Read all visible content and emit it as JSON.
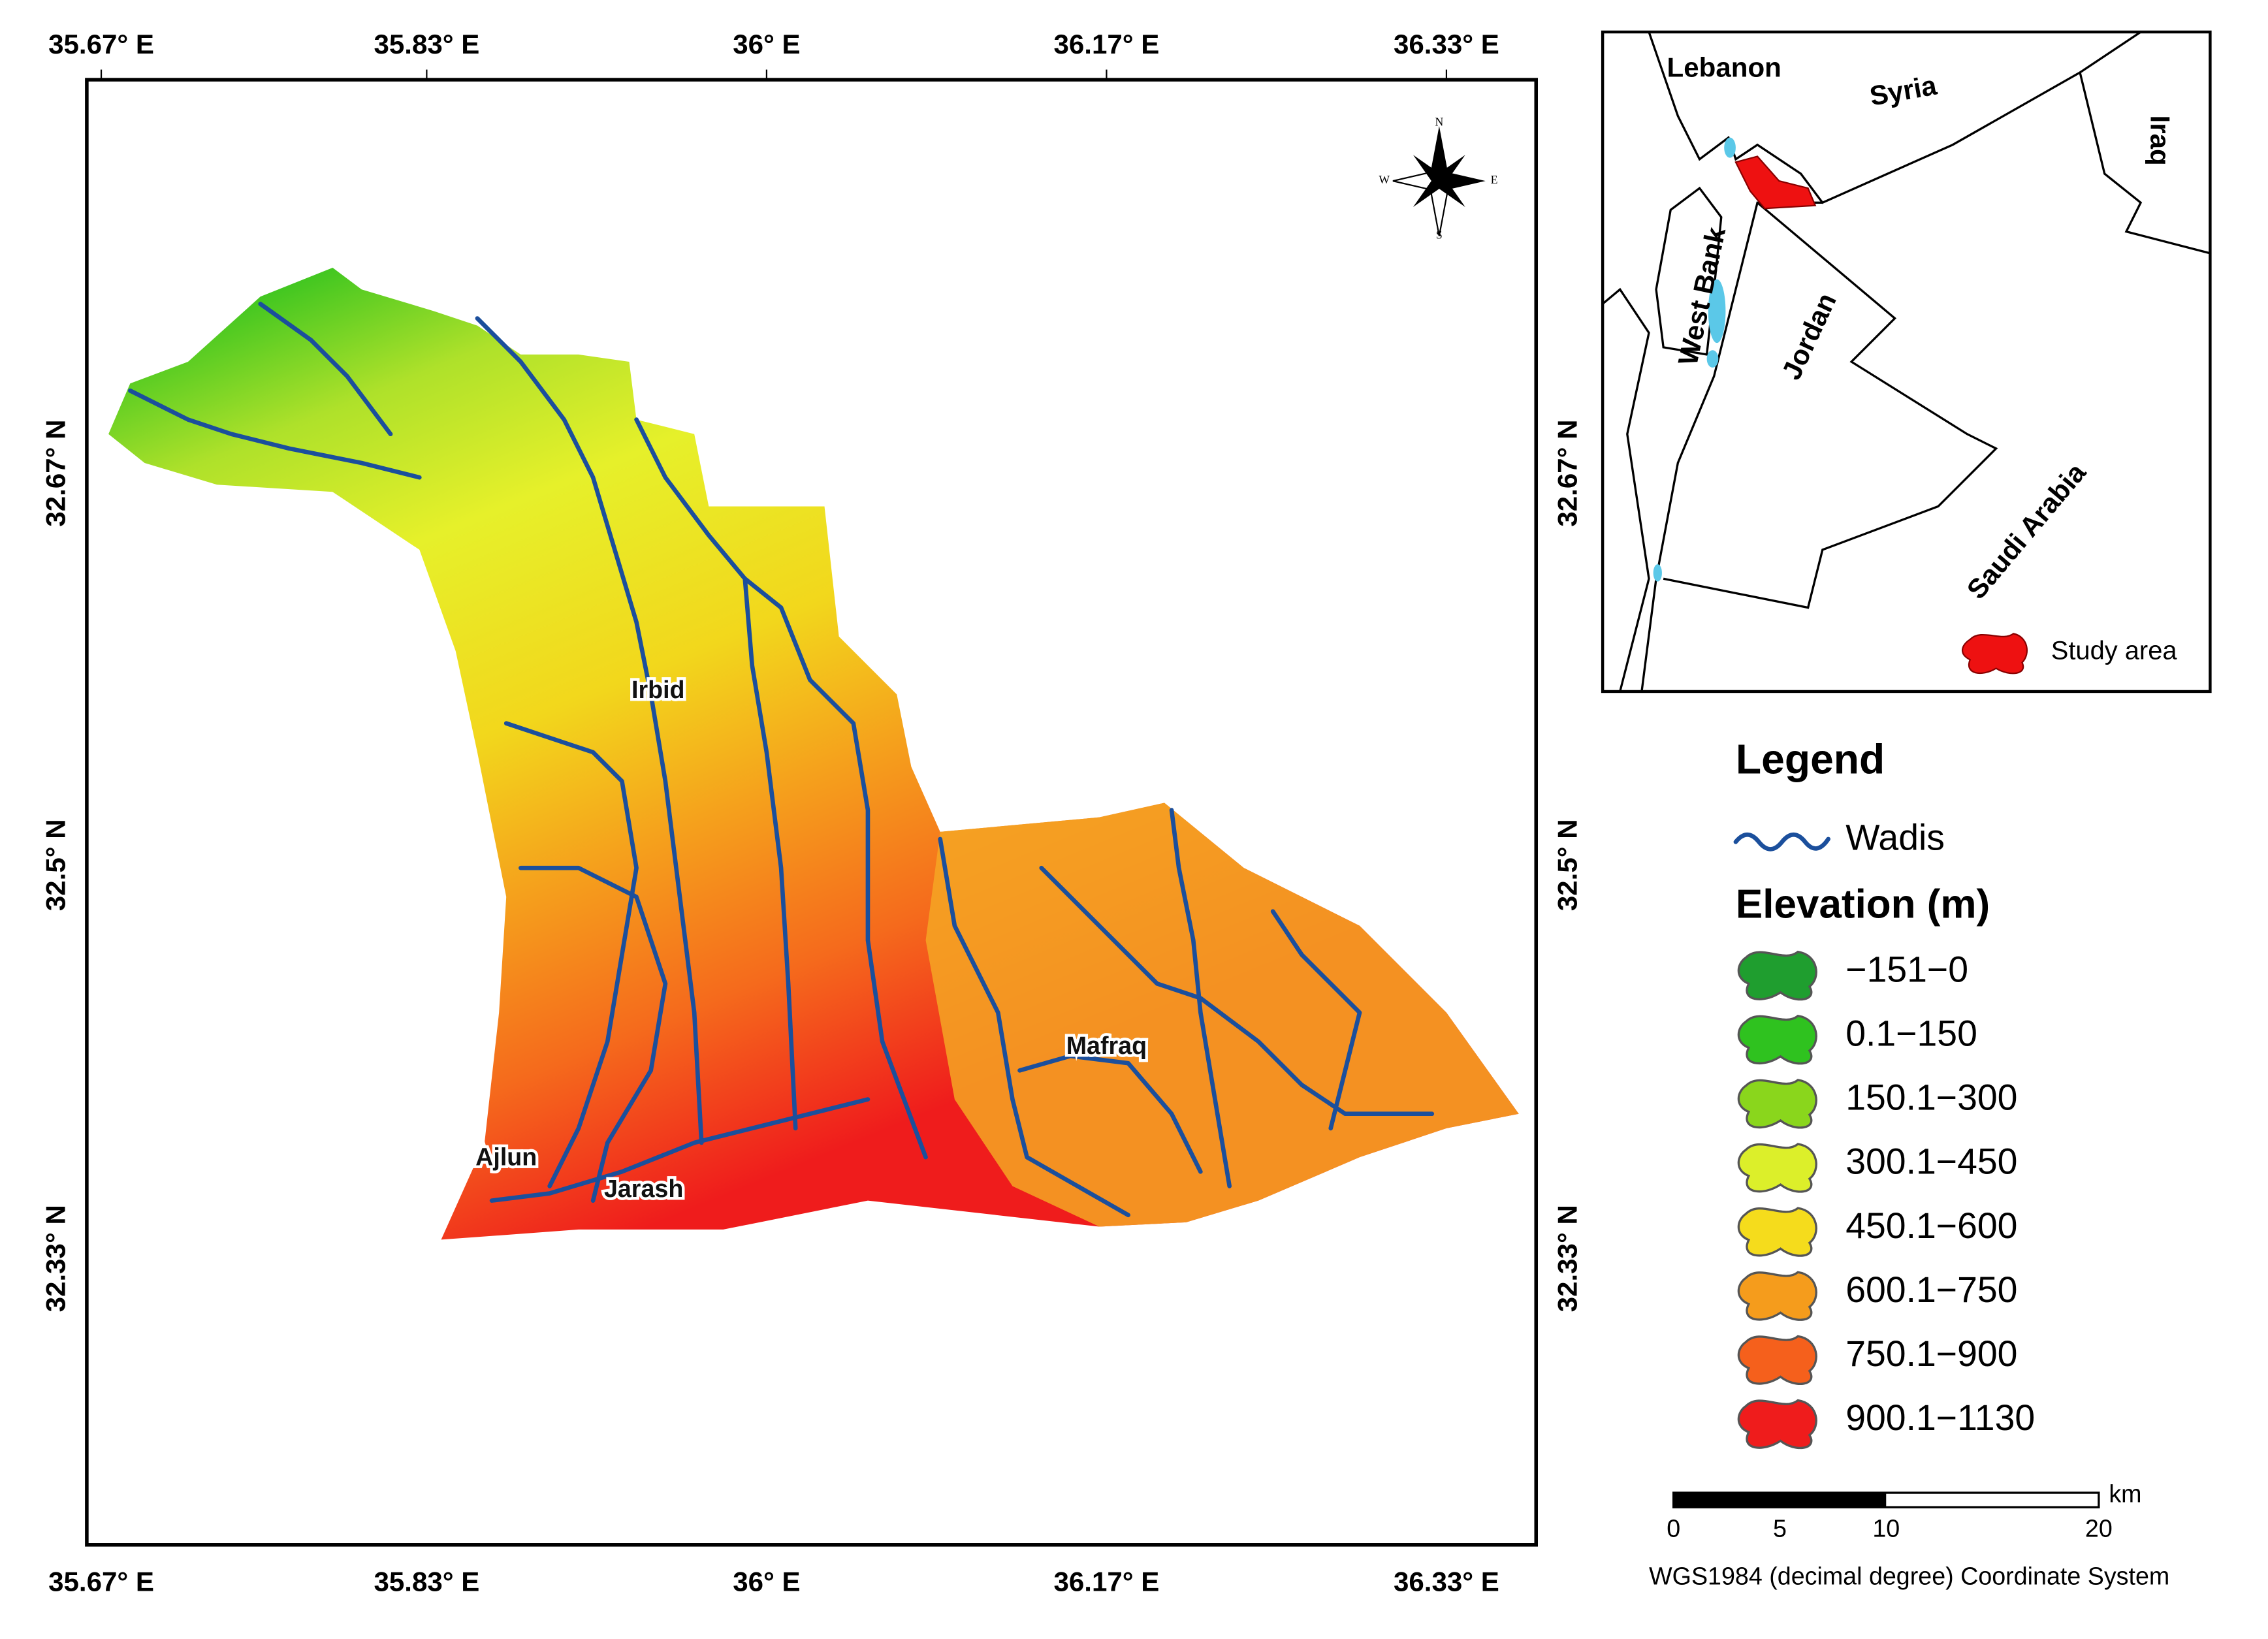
{
  "map": {
    "x_labels": [
      "35.67° E",
      "35.83° E",
      "36° E",
      "36.17° E",
      "36.33° E"
    ],
    "y_labels": [
      "32.67° N",
      "32.5° N",
      "32.33° N"
    ],
    "places": [
      "Irbid",
      "Mafraq",
      "Ajlun",
      "Jarash"
    ],
    "compass": [
      "N",
      "E",
      "S",
      "W"
    ]
  },
  "inset": {
    "countries": [
      "Lebanon",
      "Syria",
      "Iraq",
      "West Bank",
      "Jordan",
      "Saudi Arabia"
    ],
    "legend": "Study area"
  },
  "legend": {
    "title": "Legend",
    "wadis": "Wadis",
    "elevation_title": "Elevation (m)",
    "classes": [
      {
        "label": "−151−0",
        "color": "#1f9e2f"
      },
      {
        "label": "0.1−150",
        "color": "#2fc21f"
      },
      {
        "label": "150.1−300",
        "color": "#8ad61c"
      },
      {
        "label": "300.1−450",
        "color": "#dcef2a"
      },
      {
        "label": "450.1−600",
        "color": "#f5dc1c"
      },
      {
        "label": "600.1−750",
        "color": "#f59c1c"
      },
      {
        "label": "750.1−900",
        "color": "#f5601c"
      },
      {
        "label": "900.1−1130",
        "color": "#ef1c1c"
      }
    ]
  },
  "scale_bar": {
    "unit": "km",
    "labels": [
      0,
      5,
      10,
      20
    ]
  },
  "coordinate_system": "WGS1984 (decimal degree) Coordinate System"
}
